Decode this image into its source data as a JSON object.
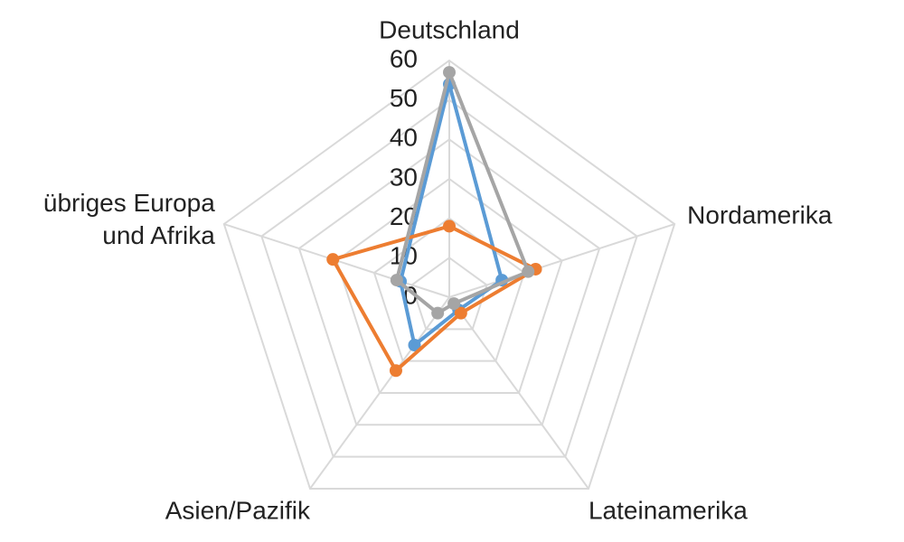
{
  "chart_data": {
    "type": "radar",
    "categories": [
      "Deutschland",
      "Nordamerika",
      "Lateinamerika",
      "Asien/Pazifik",
      "übriges Europa\nund Afrika"
    ],
    "series": [
      {
        "color": "#5b9bd5",
        "values": [
          54,
          14,
          4,
          15,
          13
        ]
      },
      {
        "color": "#ed7d31",
        "values": [
          18,
          23,
          5,
          23,
          31
        ]
      },
      {
        "color": "#a5a5a5",
        "values": [
          57,
          21,
          2,
          5,
          14
        ]
      }
    ],
    "rlim": [
      0,
      60
    ],
    "rticks": [
      0,
      10,
      20,
      30,
      40,
      50,
      60
    ],
    "grid": true
  }
}
